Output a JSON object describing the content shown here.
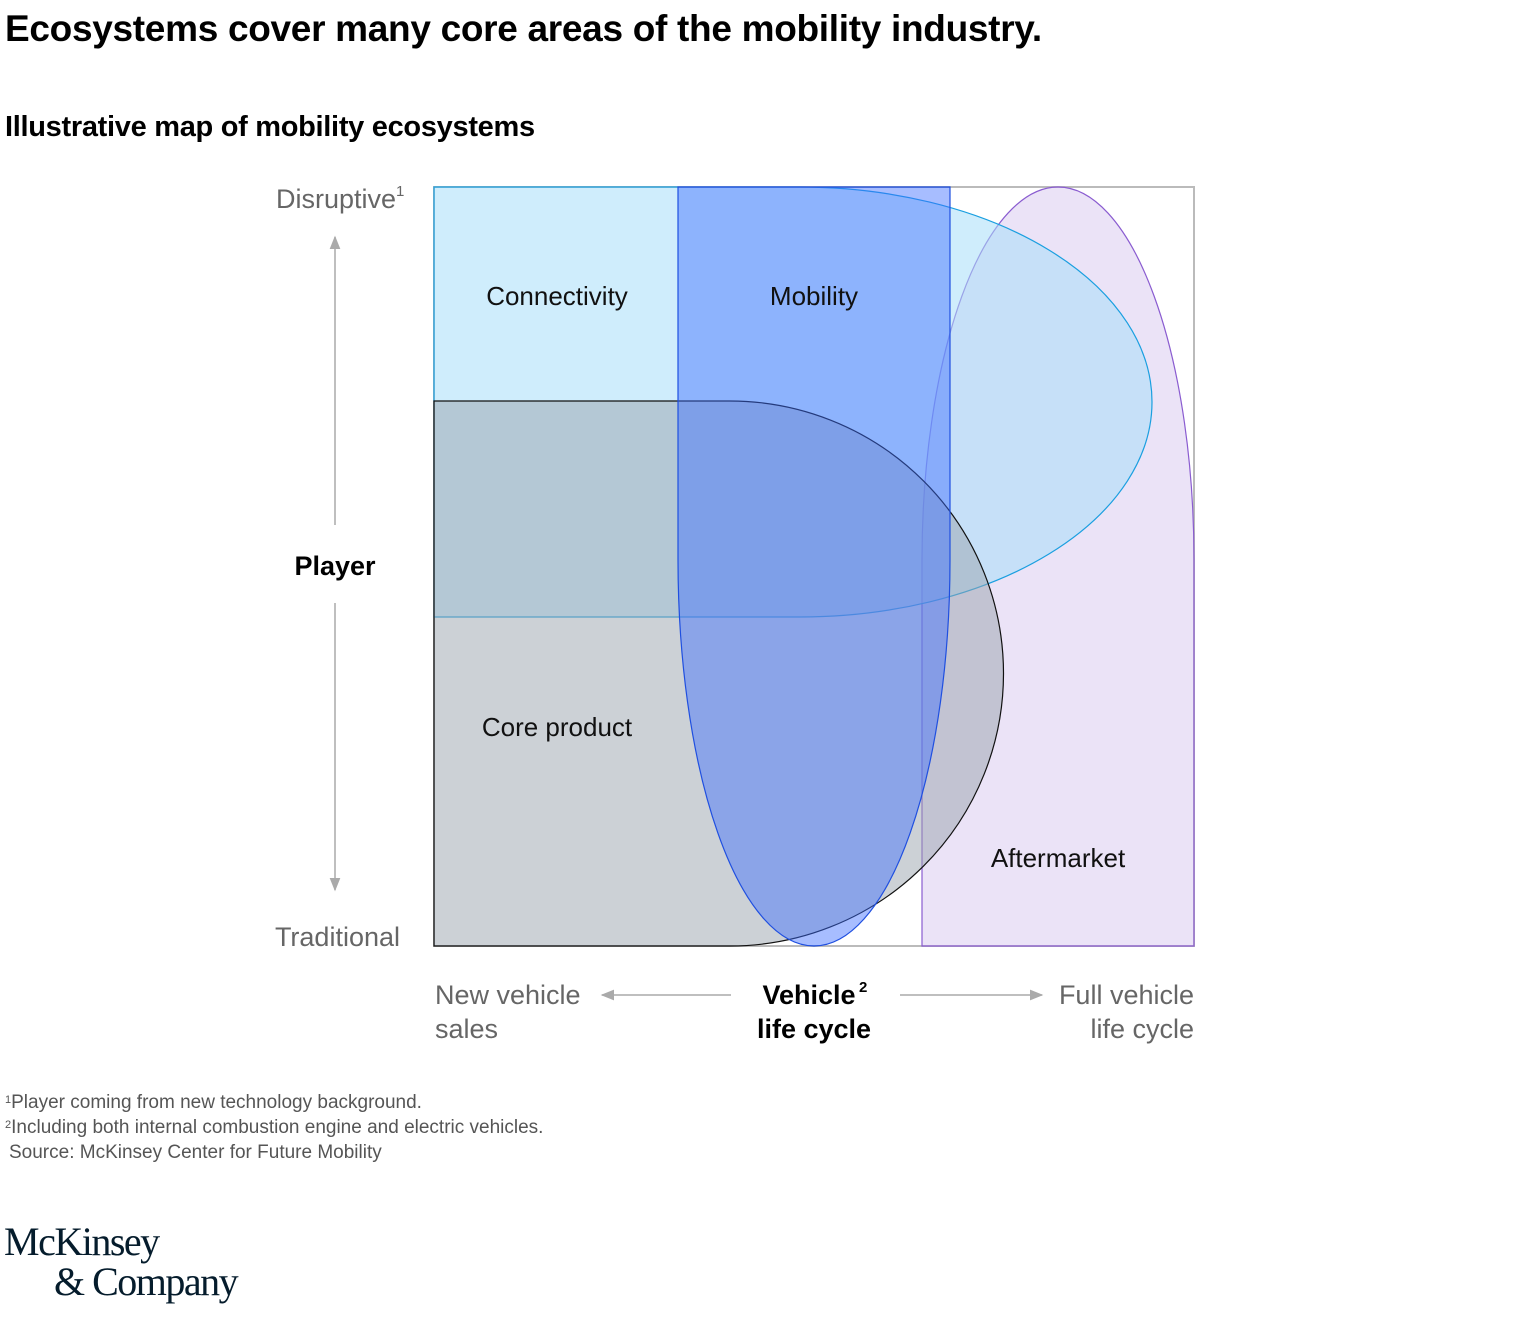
{
  "header": {
    "title": "Ecosystems cover many core areas of the mobility industry.",
    "subtitle": "Illustrative map of mobility ecosystems"
  },
  "diagram": {
    "y_axis": {
      "top_label": "Disruptive",
      "top_label_sup": "1",
      "center_label": "Player",
      "bottom_label": "Traditional"
    },
    "x_axis": {
      "left_label_line1": "New vehicle",
      "left_label_line2": "sales",
      "center_label_line1": "Vehicle",
      "center_label_sup": "2",
      "center_label_line2": "life cycle",
      "right_label_line1": "Full vehicle",
      "right_label_line2": "life cycle"
    },
    "areas": [
      {
        "label": "Connectivity",
        "fill": "#a8dffa",
        "stroke": "#1a9fe0"
      },
      {
        "label": "Mobility",
        "fill": "#3c6cff",
        "stroke": "#1f4fe0"
      },
      {
        "label": "Core product",
        "fill": "#99a4ad",
        "stroke": "#111111"
      },
      {
        "label": "Aftermarket",
        "fill": "#d7c7ef",
        "stroke": "#8a5cd0"
      }
    ]
  },
  "footnotes": {
    "note1_sup": "1",
    "note1": "Player coming from new technology background.",
    "note2_sup": "2",
    "note2": "Including both internal combustion engine and electric vehicles.",
    "source": "Source: McKinsey Center for Future Mobility"
  },
  "logo": {
    "line1": "McKinsey",
    "line2": "& Company"
  }
}
